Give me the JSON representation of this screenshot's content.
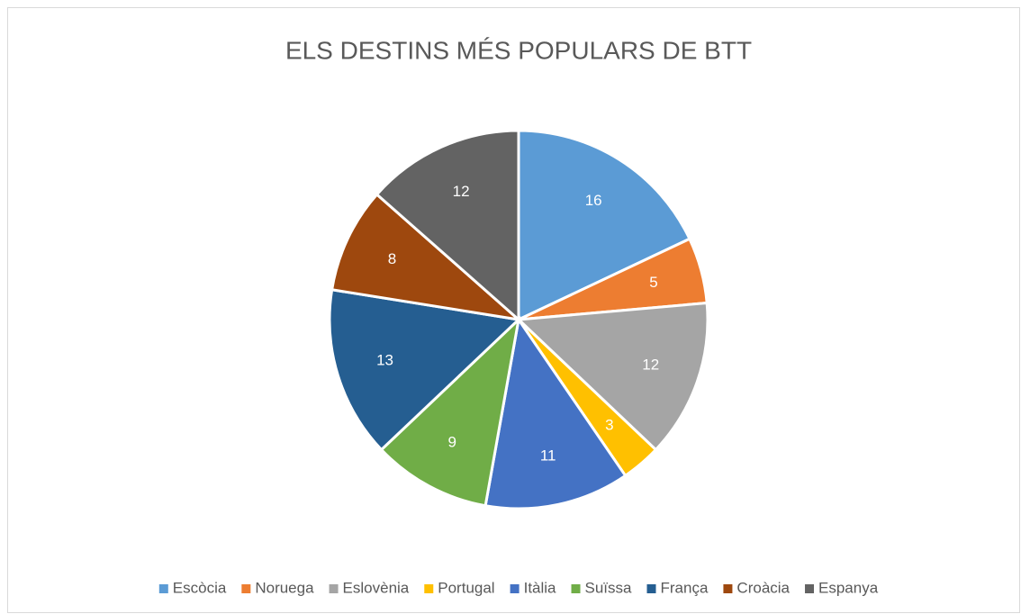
{
  "chart_data": {
    "type": "pie",
    "title": "ELS DESTINS MÉS POPULARS DE BTT",
    "categories": [
      "Escòcia",
      "Noruega",
      "Eslovènia",
      "Portugal",
      "Itàlia",
      "Suïssa",
      "França",
      "Croàcia",
      "Espanya"
    ],
    "values": [
      16,
      5,
      12,
      3,
      11,
      9,
      13,
      8,
      12
    ],
    "colors": [
      "#5b9bd5",
      "#ed7d31",
      "#a5a5a5",
      "#ffc000",
      "#4472c4",
      "#70ad47",
      "#255e91",
      "#9e480e",
      "#636363"
    ],
    "legend": "bottom"
  }
}
